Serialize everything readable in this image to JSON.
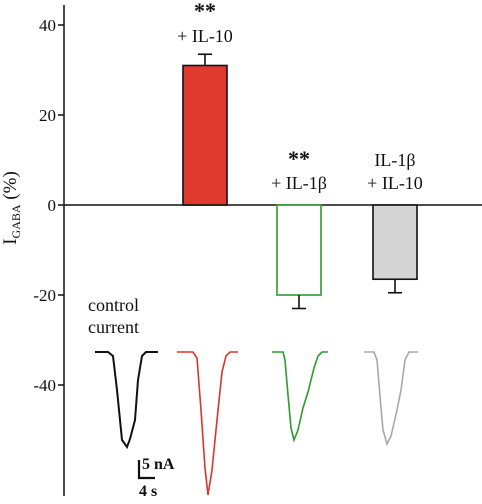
{
  "chart_data": {
    "type": "bar",
    "ylabel": {
      "main": "I",
      "subscript": "GABA",
      "suffix": " (%)"
    },
    "ylim": [
      -47,
      44
    ],
    "yticks": [
      40,
      20,
      0,
      -20,
      -40
    ],
    "yticks_labels": [
      "40",
      "20",
      "0",
      "-20",
      "-40"
    ],
    "categories": [
      "+ IL-10",
      "+ IL-1β",
      "IL-1β + IL-10"
    ],
    "values": [
      31,
      -20,
      -16.5
    ],
    "errors": [
      2.5,
      3,
      3
    ],
    "annotations": [
      {
        "stars": "**",
        "lines": [
          "+ IL-10"
        ]
      },
      {
        "stars": "**",
        "lines": [
          "+ IL-1β"
        ]
      },
      {
        "stars": "",
        "lines": [
          "IL-1β",
          "+ IL-10"
        ]
      }
    ],
    "colors": {
      "bar_fill": [
        "#e03a2e",
        "#ffffff",
        "#d4d4d4"
      ],
      "bar_stroke": [
        "#111111",
        "#2e9a2e",
        "#111111"
      ],
      "traces": [
        "#111111",
        "#d8362b",
        "#2e9a2e",
        "#a8a8a8"
      ]
    },
    "control_label": [
      "control",
      "current"
    ],
    "scale_bar": {
      "amplitude": "5 nA",
      "time": "4 s"
    }
  }
}
